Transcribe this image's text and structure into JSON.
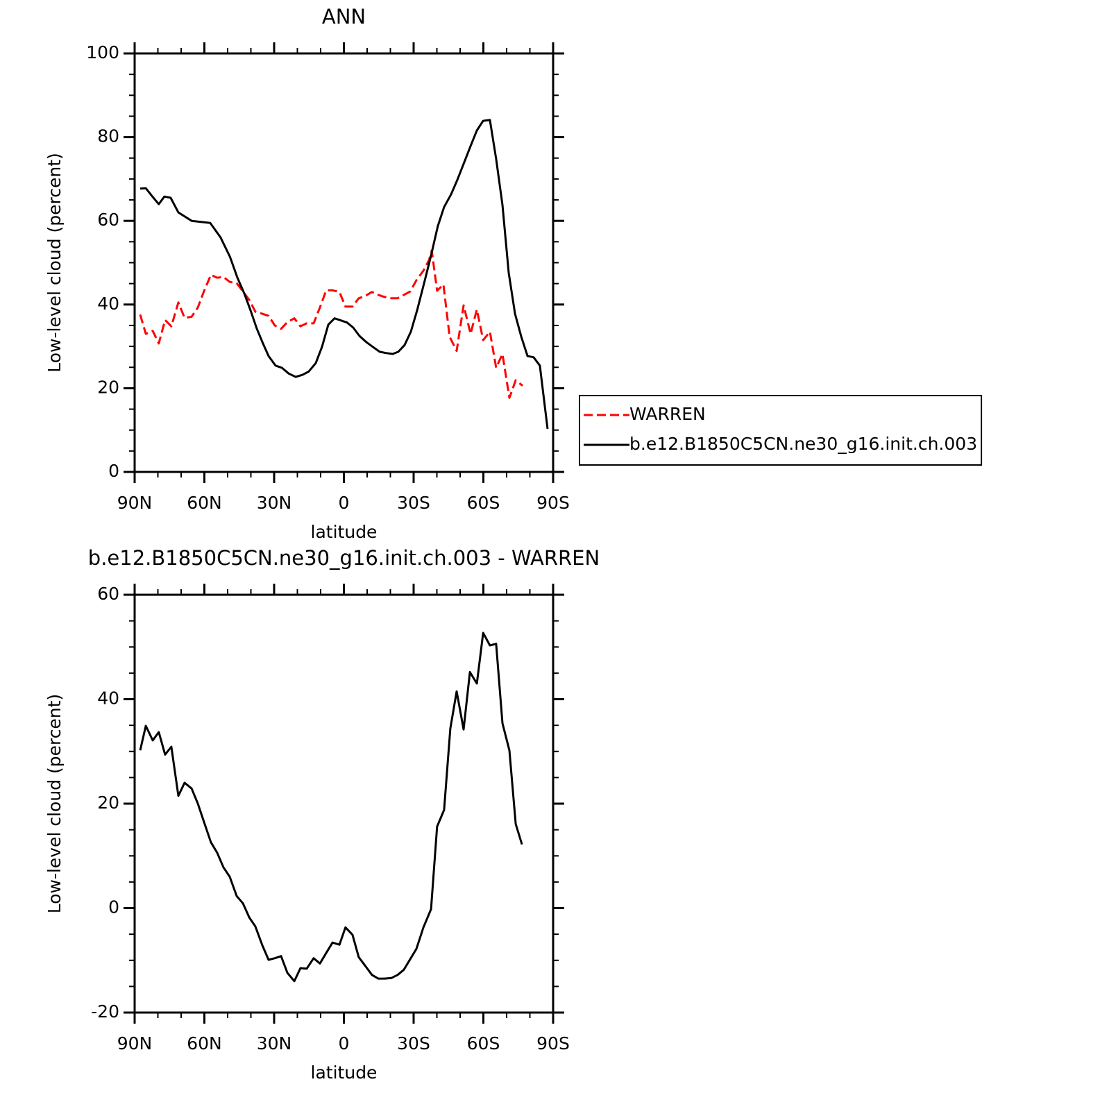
{
  "chart_data": [
    {
      "type": "line",
      "title": "ANN",
      "xlabel": "latitude",
      "ylabel": "Low-level cloud (percent)",
      "xlim": [
        90,
        -90
      ],
      "xticks": [
        {
          "value": 90,
          "label": "90N"
        },
        {
          "value": 60,
          "label": "60N"
        },
        {
          "value": 30,
          "label": "30N"
        },
        0,
        {
          "value": -30,
          "label": "30S"
        },
        {
          "value": -60,
          "label": "60S"
        },
        {
          "value": -90,
          "label": "90S"
        }
      ],
      "ylim": [
        0,
        100
      ],
      "yticks": [
        0,
        20,
        40,
        60,
        80,
        100
      ],
      "legend": "right",
      "series": [
        {
          "name": "WARREN",
          "color": "#ff0000",
          "line_style": "dashed",
          "x": [
            87.6,
            85.2,
            82.2,
            79.6,
            76.9,
            74.2,
            71.2,
            68.5,
            65.5,
            62.8,
            60.1,
            57.2,
            54.5,
            51.8,
            49.1,
            46.1,
            43.4,
            40.7,
            38.1,
            35.1,
            32.4,
            29.7,
            27.0,
            24.3,
            21.3,
            18.7,
            16.0,
            13.0,
            10.3,
            7.6,
            4.9,
            1.9,
            -0.7,
            -3.7,
            -6.4,
            -9.1,
            -12.1,
            -14.8,
            -17.5,
            -20.4,
            -23.1,
            -25.8,
            -28.5,
            -31.2,
            -34.2,
            -36.6,
            -37.8,
            -40.1,
            -42.8,
            -45.5,
            -48.5,
            -51.5,
            -54.5,
            -57.2,
            -59.9,
            -62.8,
            -65.5,
            -68.2,
            -71.2,
            -73.9,
            -76.9
          ],
          "values": [
            37.6,
            33.0,
            33.7,
            30.7,
            36.3,
            34.8,
            40.5,
            36.8,
            37.1,
            39.3,
            43.3,
            47.1,
            46.4,
            46.6,
            45.4,
            45.1,
            43.1,
            41.1,
            38.3,
            37.8,
            37.3,
            35.0,
            34.2,
            35.8,
            36.7,
            34.8,
            35.5,
            35.5,
            39.3,
            43.4,
            43.4,
            43.0,
            39.5,
            39.5,
            41.5,
            42.0,
            43.0,
            42.3,
            41.8,
            41.5,
            41.5,
            42.3,
            43.1,
            45.8,
            48.1,
            50.6,
            52.9,
            43.3,
            44.8,
            32.3,
            28.9,
            39.8,
            33.0,
            38.8,
            31.5,
            33.5,
            24.9,
            28.2,
            17.7,
            21.9,
            20.6
          ]
        },
        {
          "name": "b.e12.B1850C5CN.ne30_g16.init.ch.003",
          "color": "#000000",
          "line_style": "solid",
          "x": [
            87.6,
            85.2,
            82.2,
            79.6,
            77.2,
            74.5,
            71.2,
            65.5,
            57.5,
            53,
            49,
            45.8,
            42.8,
            40.1,
            37.5,
            34.8,
            32.4,
            29.4,
            26.7,
            23.7,
            20.7,
            17.8,
            15.1,
            12.1,
            9.4,
            6.7,
            4.0,
            1.3,
            -1.3,
            -4.0,
            -6.7,
            -9.7,
            -12.4,
            -15.4,
            -18.1,
            -21.0,
            -23.4,
            -26.1,
            -28.8,
            -31.5,
            -34.5,
            -37.5,
            -40.4,
            -43.1,
            -46.1,
            -48.8,
            -51.5,
            -54.5,
            -57.2,
            -59.9,
            -62.8,
            -65.5,
            -68.2,
            -70.9,
            -73.6,
            -76.3,
            -79.0,
            -81.6,
            -84.3,
            -87.6
          ],
          "values": [
            67.7,
            67.8,
            65.7,
            64.0,
            65.8,
            65.5,
            62.0,
            60.0,
            59.5,
            56,
            51.4,
            46.4,
            42.6,
            38.5,
            34.3,
            30.7,
            27.7,
            25.4,
            24.9,
            23.5,
            22.7,
            23.2,
            24.0,
            26.0,
            29.9,
            35.2,
            36.7,
            36.2,
            35.7,
            34.5,
            32.5,
            31.0,
            29.9,
            28.7,
            28.4,
            28.2,
            28.7,
            30.3,
            33.5,
            38.6,
            45.1,
            51.7,
            58.7,
            63.3,
            66.3,
            69.8,
            73.6,
            77.9,
            81.6,
            83.9,
            84.1,
            74.8,
            63.8,
            47.6,
            37.8,
            32.3,
            27.7,
            27.4,
            25.4,
            10.3
          ]
        }
      ]
    },
    {
      "type": "line",
      "title": "b.e12.B1850C5CN.ne30_g16.init.ch.003 - WARREN",
      "xlabel": "latitude",
      "ylabel": "Low-level cloud (percent)",
      "xlim": [
        90,
        -90
      ],
      "xticks": [
        {
          "value": 90,
          "label": "90N"
        },
        {
          "value": 60,
          "label": "60N"
        },
        {
          "value": 30,
          "label": "30N"
        },
        0,
        {
          "value": -30,
          "label": "30S"
        },
        {
          "value": -60,
          "label": "60S"
        },
        {
          "value": -90,
          "label": "90S"
        }
      ],
      "ylim": [
        -20,
        60
      ],
      "yticks": [
        -20,
        0,
        20,
        40,
        60
      ],
      "series": [
        {
          "color": "#000000",
          "line_style": "solid",
          "x": [
            87.6,
            85.2,
            82.2,
            79.6,
            76.9,
            74.2,
            71.2,
            68.5,
            65.5,
            62.8,
            60.1,
            57.2,
            54.5,
            51.8,
            49.1,
            46.1,
            43.4,
            40.7,
            38.1,
            35.1,
            32.4,
            29.7,
            27.0,
            24.3,
            21.3,
            18.7,
            16.0,
            13.0,
            10.3,
            7.6,
            4.9,
            1.9,
            -0.7,
            -3.7,
            -6.4,
            -9.1,
            -12.1,
            -14.8,
            -17.5,
            -20.4,
            -23.1,
            -25.8,
            -28.5,
            -31.2,
            -34.2,
            -37.5,
            -40.1,
            -43.1,
            -45.8,
            -48.5,
            -51.5,
            -54.2,
            -57.2,
            -59.9,
            -62.8,
            -65.5,
            -68.2,
            -71.2,
            -73.9,
            -76.6
          ],
          "values": [
            30.2,
            34.9,
            32.1,
            33.7,
            29.4,
            30.9,
            21.5,
            24.0,
            22.9,
            20.0,
            16.4,
            12.6,
            10.6,
            7.8,
            6.0,
            2.3,
            0.9,
            -1.8,
            -3.5,
            -7.1,
            -9.9,
            -9.6,
            -9.2,
            -12.4,
            -14.0,
            -11.5,
            -11.6,
            -9.6,
            -10.6,
            -8.6,
            -6.6,
            -7.0,
            -3.7,
            -5.1,
            -9.4,
            -11.0,
            -12.8,
            -13.5,
            -13.5,
            -13.4,
            -12.8,
            -11.8,
            -9.8,
            -7.8,
            -3.7,
            -0.2,
            15.6,
            18.8,
            34.4,
            41.5,
            34.2,
            45.2,
            43.0,
            52.7,
            50.3,
            50.6,
            35.4,
            30.2,
            16.1,
            12.2
          ]
        }
      ]
    }
  ]
}
